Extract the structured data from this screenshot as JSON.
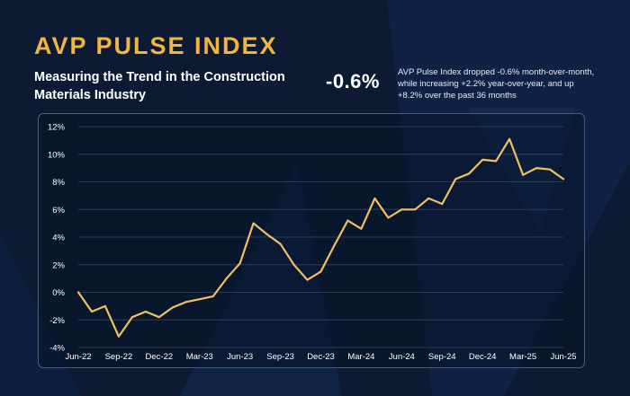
{
  "header": {
    "title": "AVP PULSE INDEX",
    "subtitle": "Measuring the Trend in the Construction Materials Industry",
    "change_value": "-0.6%",
    "summary": "AVP Pulse Index dropped -0.6% month-over-month, while increasing +2.2% year-over-year, and up +8.2% over the past 36 months"
  },
  "colors": {
    "background": "#0c1b33",
    "accent": "#f2b53d",
    "line": "#f0c063",
    "grid": "#2c3d58"
  },
  "chart_data": {
    "type": "line",
    "title": "",
    "xlabel": "",
    "ylabel": "",
    "ylim": [
      -4,
      12
    ],
    "yticks": [
      -4,
      -2,
      0,
      2,
      4,
      6,
      8,
      10,
      12
    ],
    "ytick_labels": [
      "-4%",
      "-2%",
      "0%",
      "2%",
      "4%",
      "6%",
      "8%",
      "10%",
      "12%"
    ],
    "xtick_labels": [
      "Jun-22",
      "Sep-22",
      "Dec-22",
      "Mar-23",
      "Jun-23",
      "Sep-23",
      "Dec-23",
      "Mar-24",
      "Jun-24",
      "Sep-24",
      "Dec-24",
      "Mar-25",
      "Jun-25"
    ],
    "grid": true,
    "x": [
      "Jun-22",
      "Jul-22",
      "Aug-22",
      "Sep-22",
      "Oct-22",
      "Nov-22",
      "Dec-22",
      "Jan-23",
      "Feb-23",
      "Mar-23",
      "Apr-23",
      "May-23",
      "Jun-23",
      "Jul-23",
      "Aug-23",
      "Sep-23",
      "Oct-23",
      "Nov-23",
      "Dec-23",
      "Jan-24",
      "Feb-24",
      "Mar-24",
      "Apr-24",
      "May-24",
      "Jun-24",
      "Jul-24",
      "Aug-24",
      "Sep-24",
      "Oct-24",
      "Nov-24",
      "Dec-24",
      "Jan-25",
      "Feb-25",
      "Mar-25",
      "Apr-25",
      "May-25",
      "Jun-25"
    ],
    "series": [
      {
        "values": [
          0.0,
          -1.4,
          -1.0,
          -3.2,
          -1.8,
          -1.4,
          -1.8,
          -1.1,
          -0.7,
          -0.5,
          -0.3,
          1.0,
          2.1,
          5.0,
          4.2,
          3.5,
          2.0,
          0.9,
          1.5,
          3.4,
          5.2,
          4.6,
          6.8,
          5.4,
          6.0,
          6.0,
          6.8,
          6.4,
          8.2,
          8.6,
          9.6,
          9.5,
          11.1,
          8.5,
          9.0,
          8.9,
          8.2
        ]
      }
    ]
  }
}
